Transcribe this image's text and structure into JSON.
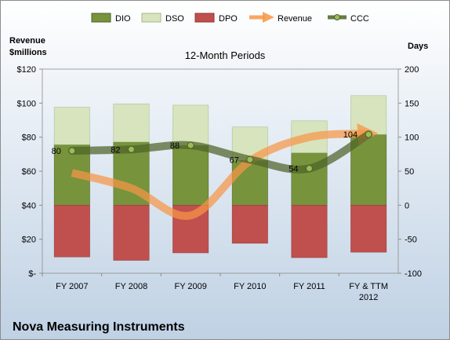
{
  "header": {
    "left_axis_title_line1": "Revenue",
    "left_axis_title_line2": "$millions",
    "right_axis_title": "Days"
  },
  "footer": {
    "company": "Nova Measuring Instruments"
  },
  "colors": {
    "dio": "#77933c",
    "dso": "#d7e4bd",
    "dpo": "#c0504d",
    "revenue": "#f79646",
    "ccc": "#4f6228",
    "ccc_marker": "#9bbb59",
    "background_top": "#ffffff",
    "background_bottom": "#bfd1e4"
  },
  "chart_data": {
    "type": "bar",
    "title": "12-Month Periods",
    "categories": [
      "FY 2007",
      "FY 2008",
      "FY 2009",
      "FY 2010",
      "FY 2011",
      "FY & TTM 2012"
    ],
    "legend": {
      "position": "top",
      "entries": [
        "DIO",
        "DSO",
        "DPO",
        "Revenue",
        "CCC"
      ]
    },
    "left_axis": {
      "label": "Revenue $millions",
      "ticks": [
        "$-",
        "$20",
        "$40",
        "$60",
        "$80",
        "$100",
        "$120"
      ],
      "range": [
        0,
        120
      ]
    },
    "right_axis": {
      "label": "Days",
      "ticks": [
        "-100",
        "-50",
        "0",
        "50",
        "100",
        "150",
        "200"
      ],
      "range": [
        -100,
        200
      ]
    },
    "series": [
      {
        "name": "DIO",
        "type": "stacked-bar",
        "axis": "right",
        "values": [
          89,
          93,
          88,
          66,
          77,
          104
        ]
      },
      {
        "name": "DSO",
        "type": "stacked-bar",
        "axis": "right",
        "values": [
          55,
          56,
          59,
          49,
          47,
          57
        ]
      },
      {
        "name": "DPO",
        "type": "negative-bar",
        "axis": "right",
        "values": [
          -76,
          -81,
          -70,
          -56,
          -77,
          -69
        ]
      },
      {
        "name": "Revenue",
        "type": "line-arrow",
        "axis": "left",
        "values": [
          59,
          50,
          34,
          66,
          80,
          82
        ]
      },
      {
        "name": "CCC",
        "type": "line",
        "axis": "right",
        "values": [
          80,
          82,
          88,
          67,
          54,
          104
        ],
        "labels": [
          "80",
          "82",
          "88",
          "67",
          "54",
          "104"
        ]
      }
    ],
    "grid": false
  }
}
